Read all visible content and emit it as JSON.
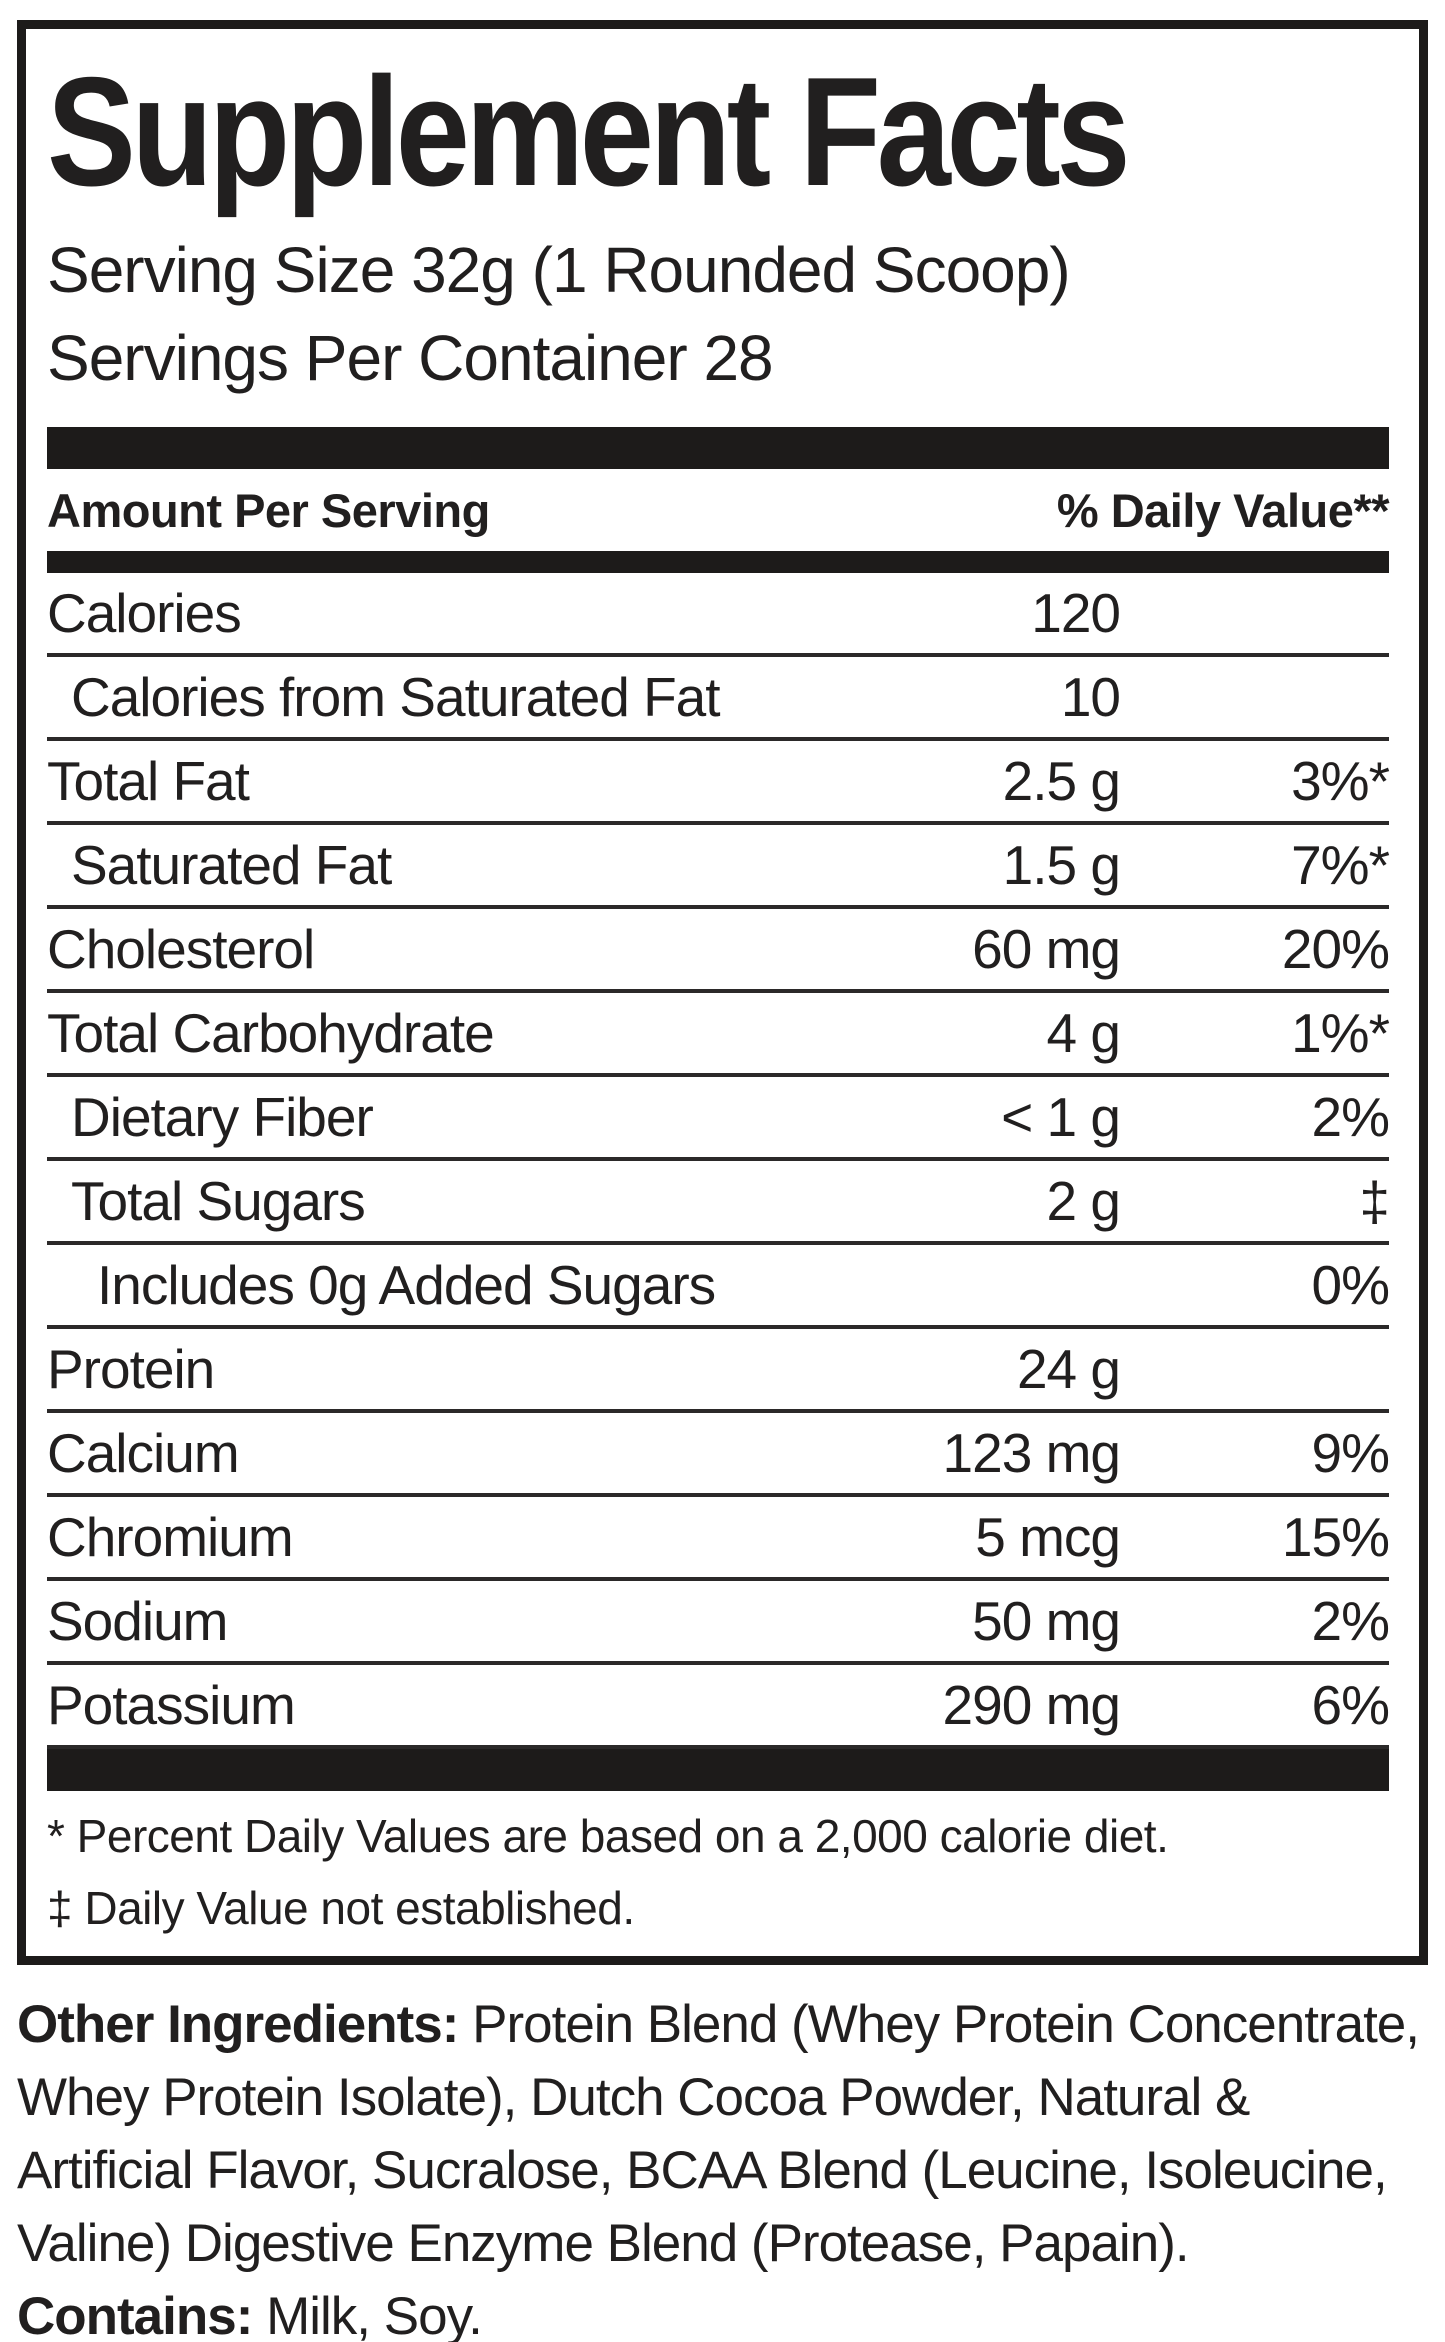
{
  "colors": {
    "ink": "#211f1f",
    "bars": "#1d1b1a",
    "background": "#ffffff"
  },
  "panel": {
    "title": "Supplement Facts",
    "serving_size": "Serving Size 32g (1 Rounded Scoop)",
    "servings_per_container": "Servings Per Container 28",
    "columns": {
      "amount_header": "Amount Per Serving",
      "dv_header": "% Daily Value**"
    },
    "rows": [
      {
        "label": "Calories",
        "amount": "120",
        "dv": ""
      },
      {
        "label": "Calories from Saturated Fat",
        "amount": "10",
        "dv": ""
      },
      {
        "label": "Total Fat",
        "amount": "2.5 g",
        "dv": "3%*"
      },
      {
        "label": "Saturated Fat",
        "amount": "1.5 g",
        "dv": "7%*"
      },
      {
        "label": "Cholesterol",
        "amount": "60 mg",
        "dv": "20%"
      },
      {
        "label": "Total Carbohydrate",
        "amount": "4 g",
        "dv": "1%*"
      },
      {
        "label": "Dietary Fiber",
        "amount": "< 1 g",
        "dv": "2%"
      },
      {
        "label": "Total Sugars",
        "amount": "2 g",
        "dv": "‡"
      },
      {
        "label": "Includes 0g Added Sugars",
        "amount": "",
        "dv": "0%"
      },
      {
        "label": "Protein",
        "amount": "24 g",
        "dv": ""
      },
      {
        "label": "Calcium",
        "amount": "123 mg",
        "dv": "9%"
      },
      {
        "label": "Chromium",
        "amount": "5 mcg",
        "dv": "15%"
      },
      {
        "label": "Sodium",
        "amount": "50 mg",
        "dv": "2%"
      },
      {
        "label": "Potassium",
        "amount": "290 mg",
        "dv": "6%"
      }
    ],
    "footnotes": [
      "* Percent Daily Values are based on a 2,000 calorie diet.",
      "‡ Daily Value not established."
    ]
  },
  "other_ingredients": {
    "label": "Other Ingredients:",
    "line1": " Protein Blend (Whey Protein Concentrate,",
    "line2": "Whey Protein Isolate), Dutch Cocoa Powder, Natural &",
    "line3": "Artificial Flavor, Sucralose, BCAA Blend (Leucine, Isoleucine,",
    "line4": "Valine) Digestive Enzyme Blend (Protease, Papain).",
    "contains_label": "Contains:",
    "contains_text": " Milk, Soy."
  }
}
